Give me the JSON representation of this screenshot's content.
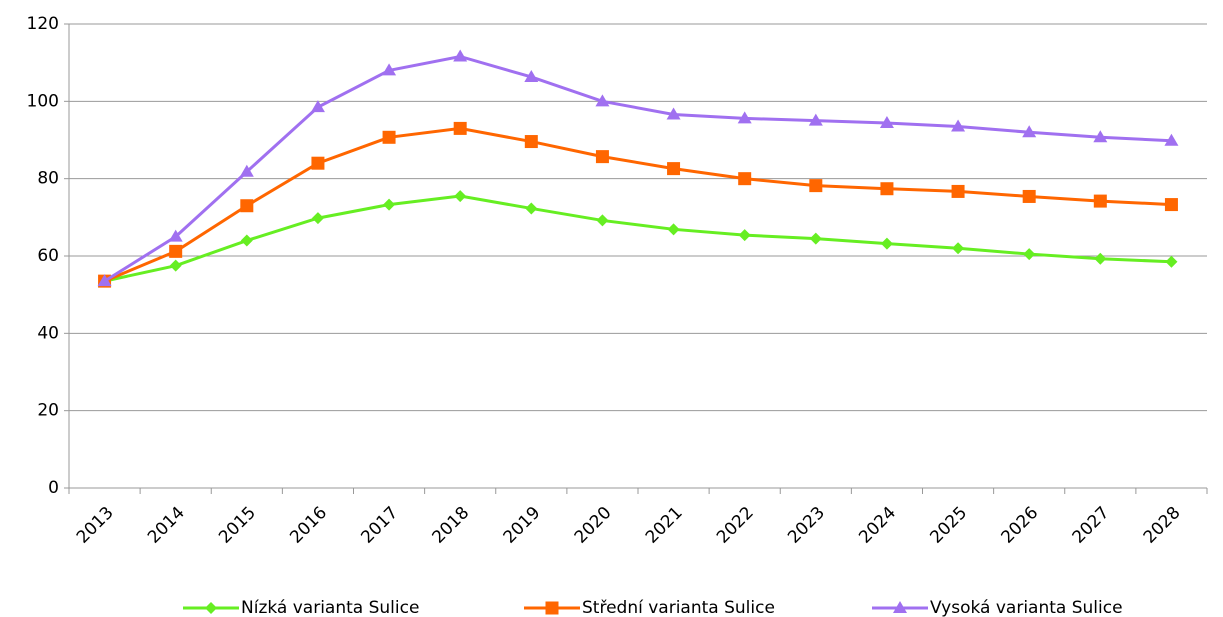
{
  "chart_data": {
    "type": "line",
    "categories": [
      "2013",
      "2014",
      "2015",
      "2016",
      "2017",
      "2018",
      "2019",
      "2020",
      "2021",
      "2022",
      "2023",
      "2024",
      "2025",
      "2026",
      "2027",
      "2028"
    ],
    "series": [
      {
        "name": "Nízká varianta Sulice",
        "color": "#66ee22",
        "marker": "diamond",
        "values": [
          53.5,
          57.5,
          64,
          69.8,
          73.3,
          75.5,
          72.3,
          69.2,
          66.9,
          65.4,
          64.5,
          63.2,
          62,
          60.5,
          59.3,
          58.5
        ]
      },
      {
        "name": "Střední varianta Sulice",
        "color": "#ff6600",
        "marker": "square",
        "values": [
          53.5,
          61.2,
          73,
          84,
          90.7,
          93,
          89.6,
          85.7,
          82.6,
          80,
          78.2,
          77.4,
          76.7,
          75.4,
          74.2,
          73.3
        ]
      },
      {
        "name": "Vysoká varianta Sulice",
        "color": "#a070f0",
        "marker": "triangle",
        "values": [
          53.5,
          65,
          81.8,
          98.5,
          108,
          111.6,
          106.3,
          100,
          96.6,
          95.6,
          95,
          94.4,
          93.5,
          92,
          90.7,
          89.8
        ]
      }
    ],
    "ylim": [
      0,
      120
    ],
    "yticks": [
      0,
      20,
      40,
      60,
      80,
      100,
      120
    ],
    "grid": true,
    "legend": "bottom"
  }
}
